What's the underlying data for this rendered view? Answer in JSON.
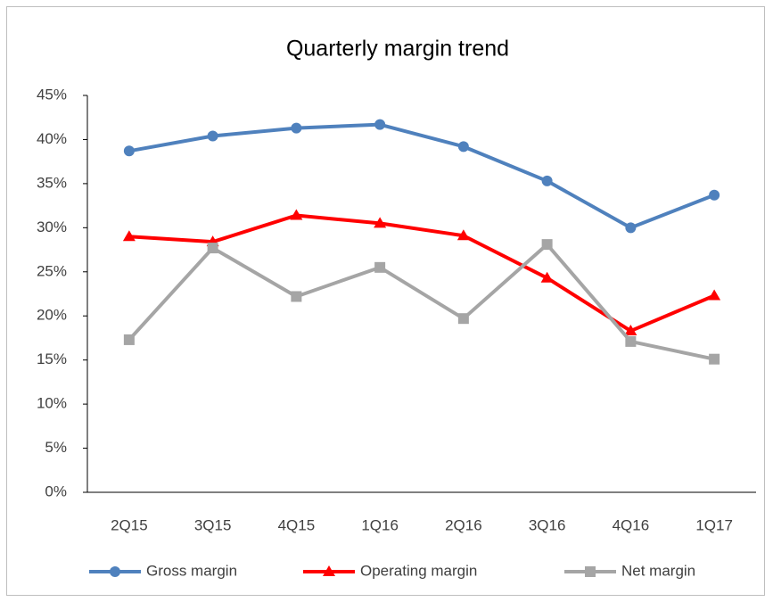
{
  "chart_data": {
    "type": "line",
    "title": "Quarterly margin trend",
    "categories": [
      "2Q15",
      "3Q15",
      "4Q15",
      "1Q16",
      "2Q16",
      "3Q16",
      "4Q16",
      "1Q17"
    ],
    "series": [
      {
        "name": "Gross margin",
        "color": "#4f81bd",
        "marker": "circle",
        "values": [
          38.7,
          40.4,
          41.3,
          41.7,
          39.2,
          35.3,
          30.0,
          33.7
        ]
      },
      {
        "name": "Operating margin",
        "color": "#ff0000",
        "marker": "triangle",
        "values": [
          29.0,
          28.4,
          31.4,
          30.5,
          29.1,
          24.3,
          18.3,
          22.3
        ]
      },
      {
        "name": "Net margin",
        "color": "#a5a5a5",
        "marker": "square",
        "values": [
          17.3,
          27.7,
          22.2,
          25.5,
          19.7,
          28.1,
          17.1,
          15.1
        ]
      }
    ],
    "ylim": [
      0,
      45
    ],
    "yticks": [
      {
        "value": 0,
        "label": "0%"
      },
      {
        "value": 5,
        "label": "5%"
      },
      {
        "value": 10,
        "label": "10%"
      },
      {
        "value": 15,
        "label": "15%"
      },
      {
        "value": 20,
        "label": "20%"
      },
      {
        "value": 25,
        "label": "25%"
      },
      {
        "value": 30,
        "label": "30%"
      },
      {
        "value": 35,
        "label": "35%"
      },
      {
        "value": 40,
        "label": "40%"
      },
      {
        "value": 45,
        "label": "45%"
      }
    ],
    "grid": false,
    "legend": "bottom"
  }
}
